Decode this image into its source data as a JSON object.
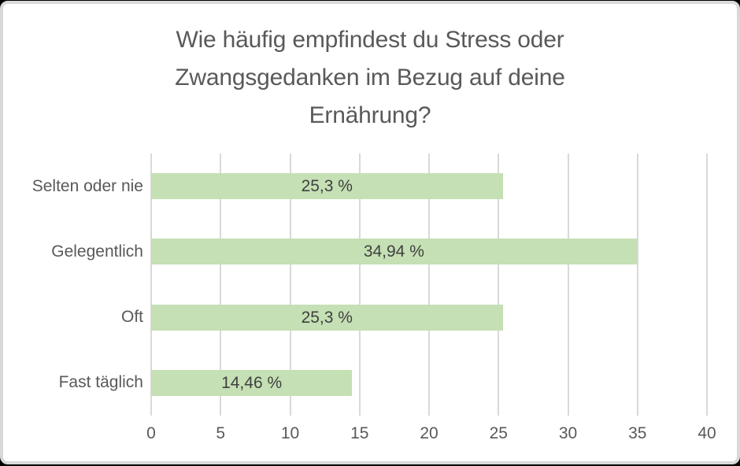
{
  "chart_data": {
    "type": "bar",
    "orientation": "horizontal",
    "title": "Wie häufig empfindest du Stress oder Zwangsgedanken im Bezug auf deine Ernährung?",
    "categories": [
      "Selten oder nie",
      "Gelegentlich",
      "Oft",
      "Fast täglich"
    ],
    "values": [
      25.3,
      34.94,
      25.3,
      14.46
    ],
    "value_labels": [
      "25,3 %",
      "34,94 %",
      "25,3 %",
      "14,46 %"
    ],
    "x_ticks": [
      0,
      5,
      10,
      15,
      20,
      25,
      30,
      35,
      40
    ],
    "xlim": [
      0,
      40
    ],
    "xlabel": "",
    "ylabel": "",
    "grid": "vertical",
    "legend": "none",
    "colors": {
      "bar": "#c5e0b4",
      "gridline": "#d9d9d9",
      "title_text": "#595959",
      "axis_text": "#595959",
      "bar_label_text": "#404040",
      "frame_border": "#d9d9d9",
      "background": "#ffffff"
    }
  }
}
